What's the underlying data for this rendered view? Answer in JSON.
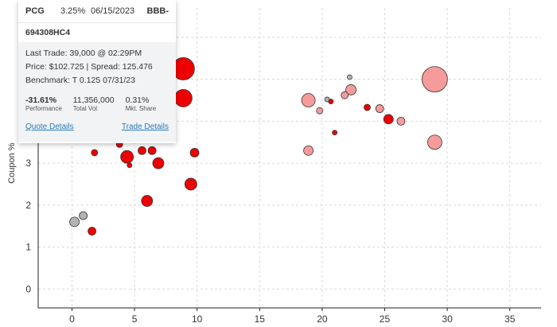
{
  "chart_data": {
    "type": "scatter",
    "title": "",
    "xlabel": "",
    "ylabel": "Coupon %",
    "xlim": [
      -2.7,
      37.5
    ],
    "ylim": [
      -0.45,
      6.7
    ],
    "xticks": [
      0,
      5,
      10,
      15,
      20,
      25,
      30,
      35
    ],
    "yticks": [
      0,
      1,
      2,
      3
    ],
    "grid": true,
    "colors": {
      "red": "#ee0000",
      "pink": "#f59b9b",
      "gray": "#b3b3b3"
    },
    "points": [
      {
        "x": 8.9,
        "y": 5.25,
        "size": 14,
        "color": "red"
      },
      {
        "x": 8.9,
        "y": 4.55,
        "size": 11,
        "color": "red"
      },
      {
        "x": 1.8,
        "y": 3.25,
        "size": 4,
        "color": "red"
      },
      {
        "x": 3.8,
        "y": 3.45,
        "size": 4,
        "color": "red"
      },
      {
        "x": 4.4,
        "y": 3.15,
        "size": 8,
        "color": "red"
      },
      {
        "x": 4.6,
        "y": 2.95,
        "size": 3,
        "color": "red"
      },
      {
        "x": 5.6,
        "y": 3.3,
        "size": 5,
        "color": "red"
      },
      {
        "x": 6.4,
        "y": 3.3,
        "size": 5,
        "color": "red"
      },
      {
        "x": 6.9,
        "y": 3.0,
        "size": 7,
        "color": "red"
      },
      {
        "x": 9.8,
        "y": 3.25,
        "size": 5.5,
        "color": "red"
      },
      {
        "x": 9.5,
        "y": 2.5,
        "size": 7.5,
        "color": "red"
      },
      {
        "x": 6.0,
        "y": 2.1,
        "size": 7,
        "color": "red"
      },
      {
        "x": 1.6,
        "y": 1.38,
        "size": 5,
        "color": "red"
      },
      {
        "x": 0.2,
        "y": 1.6,
        "size": 6,
        "color": "gray"
      },
      {
        "x": 0.9,
        "y": 1.75,
        "size": 5,
        "color": "gray"
      },
      {
        "x": 29.0,
        "y": 5.0,
        "size": 16,
        "color": "pink"
      },
      {
        "x": 29.0,
        "y": 3.5,
        "size": 9,
        "color": "pink"
      },
      {
        "x": 18.9,
        "y": 4.5,
        "size": 8.5,
        "color": "pink"
      },
      {
        "x": 18.9,
        "y": 3.3,
        "size": 6,
        "color": "pink"
      },
      {
        "x": 19.8,
        "y": 4.25,
        "size": 4,
        "color": "pink"
      },
      {
        "x": 20.4,
        "y": 4.52,
        "size": 3,
        "color": "gray"
      },
      {
        "x": 20.7,
        "y": 4.47,
        "size": 3,
        "color": "red"
      },
      {
        "x": 21.0,
        "y": 3.73,
        "size": 3,
        "color": "red"
      },
      {
        "x": 21.8,
        "y": 4.62,
        "size": 4.5,
        "color": "pink"
      },
      {
        "x": 22.3,
        "y": 4.75,
        "size": 6.5,
        "color": "pink"
      },
      {
        "x": 22.2,
        "y": 5.05,
        "size": 3,
        "color": "gray"
      },
      {
        "x": 23.6,
        "y": 4.33,
        "size": 4,
        "color": "red"
      },
      {
        "x": 24.6,
        "y": 4.3,
        "size": 5,
        "color": "pink"
      },
      {
        "x": 25.3,
        "y": 4.05,
        "size": 6,
        "color": "red"
      },
      {
        "x": 26.3,
        "y": 4.0,
        "size": 5,
        "color": "pink"
      }
    ]
  },
  "tooltip": {
    "symbol": "PCG",
    "coupon": "3.25%",
    "date": "06/15/2023",
    "rating": "BBB-",
    "cusip": "694308HC4",
    "last_trade": "Last Trade: 39,000 @ 02:29PM",
    "price_spread": "Price: $102.725 | Spread: 125.476",
    "benchmark": "Benchmark: T 0.125 07/31/23",
    "stats": [
      {
        "value": "-31.61%",
        "label": "Performance"
      },
      {
        "value": "11,356,000",
        "label": "Total Vol"
      },
      {
        "value": "0.31%",
        "label": "Mkt. Share"
      }
    ],
    "quote_link": "Quote Details",
    "trade_link": "Trade Details"
  }
}
